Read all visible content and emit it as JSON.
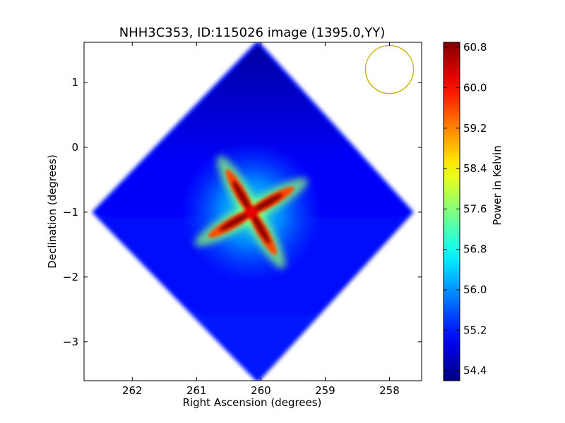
{
  "chart_data": {
    "type": "heatmap",
    "title": "NHH3C353, ID:115026 image (1395.0,YY)",
    "xlabel": "Right Ascension (degrees)",
    "ylabel": "Declination (degrees)",
    "x_ticks": [
      262,
      261,
      260,
      259,
      258
    ],
    "y_ticks": [
      1,
      0,
      -1,
      -2,
      -3
    ],
    "xlim": [
      262.75,
      257.5
    ],
    "ylim": [
      -3.6,
      1.62
    ],
    "x_inverted": true,
    "grid": false,
    "colorbar": {
      "label": "Power in Kelvin",
      "colormap": "jet",
      "range": [
        54.2,
        60.9
      ],
      "ticks": [
        60.8,
        60.0,
        59.2,
        58.4,
        57.6,
        56.8,
        56.0,
        55.2,
        54.4
      ]
    },
    "coverage": {
      "shape": "diamond",
      "corners": [
        {
          "ra": 260.05,
          "dec": 1.62
        },
        {
          "ra": 257.65,
          "dec": -1.0
        },
        {
          "ra": 260.05,
          "dec": -3.6
        },
        {
          "ra": 262.6,
          "dec": -1.0
        }
      ],
      "background_level": 55.2,
      "north_level": 54.4
    },
    "source": {
      "ra": 260.15,
      "dec": -1.0,
      "peak_level": 60.8,
      "pattern": "four-armed pinwheel"
    },
    "beam": {
      "ra": 258.0,
      "dec": 1.2,
      "radius_deg": 0.37,
      "color": "#c8b400"
    },
    "colors": {
      "jet_low": "#00007f",
      "jet_high": "#7f0000",
      "beam": "#c8b400"
    }
  }
}
